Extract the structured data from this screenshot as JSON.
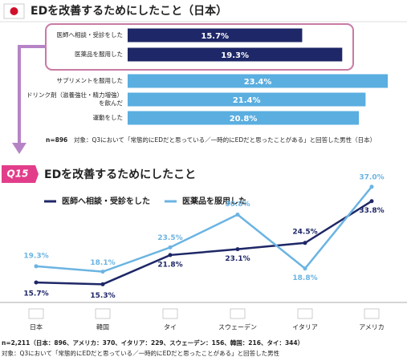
{
  "chart_data": [
    {
      "type": "hbar",
      "title": "EDを改善するためにしたこと（日本）",
      "categories": [
        "医師へ相談・受診をした",
        "医薬品を服用した",
        "サプリメントを服用した",
        "ドリンク剤（滋養強壮・精力増強）を飲んだ",
        "運動をした"
      ],
      "values": [
        15.7,
        19.3,
        23.4,
        21.4,
        20.8
      ],
      "value_labels": [
        "15.7%",
        "19.3%",
        "23.4%",
        "21.4%",
        "20.8%"
      ],
      "colors": [
        "#1e2767",
        "#1e2767",
        "#5aaee0",
        "#5aaee0",
        "#5aaee0"
      ],
      "sample": "n=896",
      "note": "対象：Q3において「常態的にEDだと思っている／一時的にEDだと思ったことがある」と回答した男性（日本）"
    },
    {
      "type": "line",
      "badge": "Q15",
      "title": "EDを改善するためにしたこと",
      "categories": [
        "日本",
        "韓国",
        "タイ",
        "スウェーデン",
        "イタリア",
        "アメリカ"
      ],
      "series": [
        {
          "name": "医師へ相談・受診をした",
          "color": "#1e2767",
          "values": [
            15.7,
            15.3,
            21.8,
            23.1,
            24.5,
            33.8
          ],
          "value_labels": [
            "15.7%",
            "15.3%",
            "21.8%",
            "23.1%",
            "24.5%",
            "33.8%"
          ]
        },
        {
          "name": "医薬品を服用した",
          "color": "#6bb4e2",
          "values": [
            19.3,
            18.1,
            23.5,
            30.8,
            18.8,
            37.0
          ],
          "value_labels": [
            "19.3%",
            "18.1%",
            "23.5%",
            "30.8%",
            "18.8%",
            "37.0%"
          ]
        }
      ],
      "sample": "n=2,211（日本：896、アメリカ：370、イタリア：229、スウェーデン：156、韓国：216、タイ：344）",
      "note": "対象：Q3において「常態的にEDだと思っている／一時的にEDだと思ったことがある」と回答した男性"
    }
  ]
}
